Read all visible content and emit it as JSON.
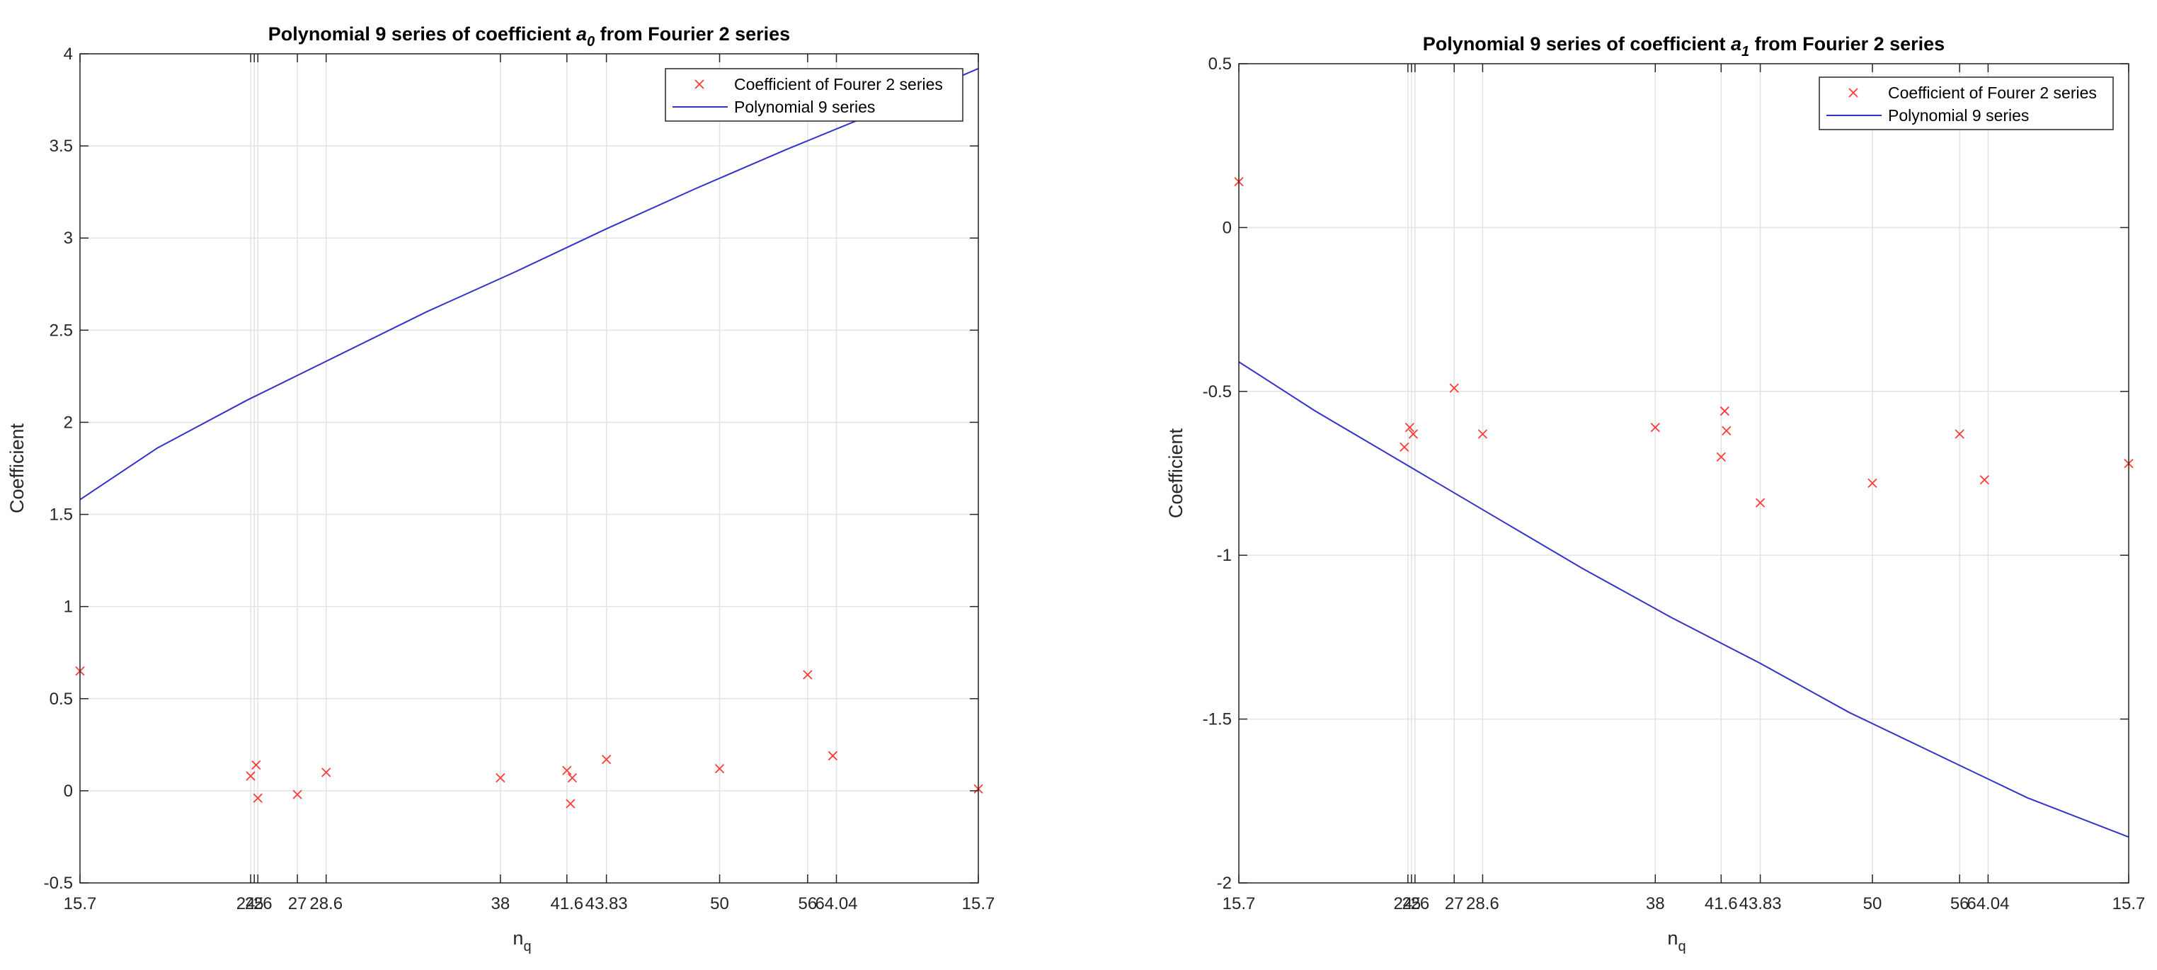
{
  "chart_data": [
    {
      "type": "scatter",
      "title_main": "Polynomial 9 series of coefficient ",
      "title_var": "a",
      "title_sub": "0",
      "title_rest": "  from Fourier 2 series",
      "xlabel_main": "n",
      "xlabel_sub": "q",
      "ylabel": "Coefficient",
      "xlim": [
        15.7,
        65.7
      ],
      "ylim": [
        -0.5,
        4
      ],
      "grid": true,
      "legend_position": "top-right",
      "xticks": [
        {
          "x": 15.7,
          "label": "15.7"
        },
        {
          "x": 25.2,
          "label": "24"
        },
        {
          "x": 25.4,
          "label": "25"
        },
        {
          "x": 25.6,
          "label": "26"
        },
        {
          "x": 27.8,
          "label": "27"
        },
        {
          "x": 29.4,
          "label": "28.6"
        },
        {
          "x": 39.1,
          "label": "38"
        },
        {
          "x": 42.8,
          "label": "41.6"
        },
        {
          "x": 45.0,
          "label": "43.83"
        },
        {
          "x": 51.3,
          "label": "50"
        },
        {
          "x": 56.2,
          "label": "56"
        },
        {
          "x": 57.8,
          "label": "64.04"
        },
        {
          "x": 65.7,
          "label": "15.7"
        }
      ],
      "yticks": [
        -0.5,
        0,
        0.5,
        1,
        1.5,
        2,
        2.5,
        3,
        3.5,
        4
      ],
      "ytick_labels": [
        "-0.5",
        "0",
        "0.5",
        "1",
        "1.5",
        "2",
        "2.5",
        "3",
        "3.5",
        "4"
      ],
      "series": [
        {
          "name": "Coefficient of Fourer 2 series",
          "kind": "markers",
          "color": "#ff3b3b",
          "points": [
            [
              15.7,
              0.65
            ],
            [
              25.2,
              0.08
            ],
            [
              25.5,
              0.14
            ],
            [
              25.6,
              -0.04
            ],
            [
              27.8,
              -0.02
            ],
            [
              29.4,
              0.1
            ],
            [
              39.1,
              0.07
            ],
            [
              42.8,
              0.11
            ],
            [
              43.0,
              -0.07
            ],
            [
              43.1,
              0.07
            ],
            [
              45.0,
              0.17
            ],
            [
              51.3,
              0.12
            ],
            [
              56.2,
              0.63
            ],
            [
              57.6,
              0.19
            ],
            [
              65.7,
              0.01
            ]
          ]
        },
        {
          "name": "Polynomial 9 series",
          "kind": "line",
          "color": "#3333cc",
          "points": [
            [
              15.7,
              1.58
            ],
            [
              20,
              1.86
            ],
            [
              25,
              2.12
            ],
            [
              30,
              2.36
            ],
            [
              35,
              2.6
            ],
            [
              40,
              2.82
            ],
            [
              45,
              3.05
            ],
            [
              50,
              3.27
            ],
            [
              55,
              3.48
            ],
            [
              60,
              3.68
            ],
            [
              65.7,
              3.92
            ]
          ]
        }
      ]
    },
    {
      "type": "scatter",
      "title_main": "Polynomial 9 series of coefficient ",
      "title_var": "a",
      "title_sub": "1",
      "title_rest": "  from Fourier 2 series",
      "xlabel_main": "n",
      "xlabel_sub": "q",
      "ylabel": "Coefficient",
      "xlim": [
        15.7,
        65.7
      ],
      "ylim": [
        -2,
        0.5
      ],
      "grid": true,
      "legend_position": "top-right",
      "xticks": [
        {
          "x": 15.7,
          "label": "15.7"
        },
        {
          "x": 25.2,
          "label": "24"
        },
        {
          "x": 25.4,
          "label": "25"
        },
        {
          "x": 25.6,
          "label": "26"
        },
        {
          "x": 27.8,
          "label": "27"
        },
        {
          "x": 29.4,
          "label": "28.6"
        },
        {
          "x": 39.1,
          "label": "38"
        },
        {
          "x": 42.8,
          "label": "41.6"
        },
        {
          "x": 45.0,
          "label": "43.83"
        },
        {
          "x": 51.3,
          "label": "50"
        },
        {
          "x": 56.2,
          "label": "56"
        },
        {
          "x": 57.8,
          "label": "64.04"
        },
        {
          "x": 65.7,
          "label": "15.7"
        }
      ],
      "yticks": [
        -2,
        -1.5,
        -1,
        -0.5,
        0,
        0.5
      ],
      "ytick_labels": [
        "-2",
        "-1.5",
        "-1",
        "-0.5",
        "0",
        "0.5"
      ],
      "series": [
        {
          "name": "Coefficient of Fourer 2 series",
          "kind": "markers",
          "color": "#ff3b3b",
          "points": [
            [
              15.7,
              0.14
            ],
            [
              25.0,
              -0.67
            ],
            [
              25.3,
              -0.61
            ],
            [
              25.5,
              -0.63
            ],
            [
              27.8,
              -0.49
            ],
            [
              29.4,
              -0.63
            ],
            [
              39.1,
              -0.61
            ],
            [
              42.8,
              -0.7
            ],
            [
              43.0,
              -0.56
            ],
            [
              43.1,
              -0.62
            ],
            [
              45.0,
              -0.84
            ],
            [
              51.3,
              -0.78
            ],
            [
              56.2,
              -0.63
            ],
            [
              57.6,
              -0.77
            ],
            [
              65.7,
              -0.72
            ]
          ]
        },
        {
          "name": "Polynomial 9 series",
          "kind": "line",
          "color": "#3333cc",
          "points": [
            [
              15.7,
              -0.41
            ],
            [
              20,
              -0.56
            ],
            [
              25,
              -0.72
            ],
            [
              30,
              -0.88
            ],
            [
              35,
              -1.04
            ],
            [
              40,
              -1.19
            ],
            [
              45,
              -1.33
            ],
            [
              50,
              -1.48
            ],
            [
              55,
              -1.61
            ],
            [
              60,
              -1.74
            ],
            [
              65.7,
              -1.86
            ]
          ]
        }
      ]
    }
  ]
}
